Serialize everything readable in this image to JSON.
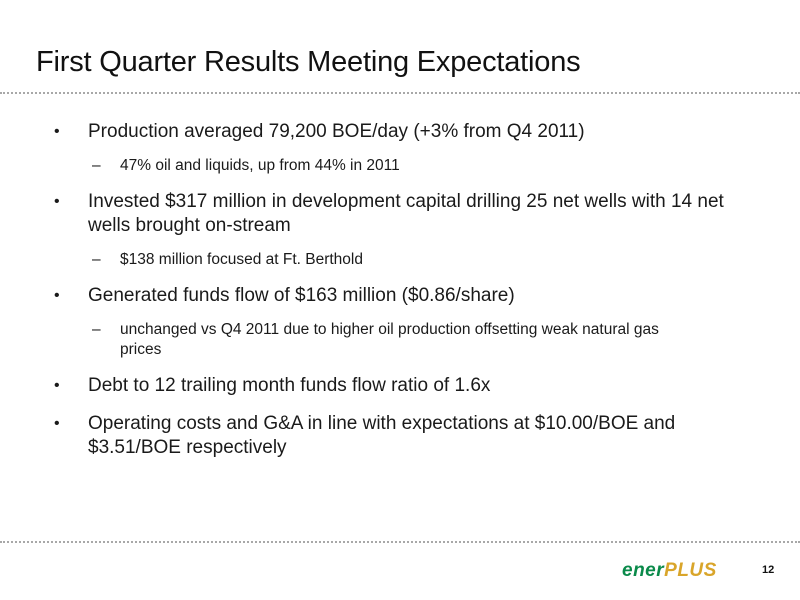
{
  "slide": {
    "title": "First Quarter Results Meeting Expectations",
    "bullets": [
      {
        "text": "Production averaged 79,200 BOE/day (+3% from Q4 2011)",
        "subs": [
          "47% oil and liquids, up from 44% in 2011"
        ]
      },
      {
        "text": "Invested $317 million in development capital drilling 25 net wells with 14 net wells brought on-stream",
        "subs": [
          "$138 million focused at Ft. Berthold"
        ]
      },
      {
        "text": "Generated funds flow of $163 million ($0.86/share)",
        "subs": [
          "unchanged vs Q4 2011 due to higher oil production offsetting weak natural gas prices"
        ]
      },
      {
        "text": "Debt to 12 trailing month funds flow ratio of 1.6x",
        "subs": []
      },
      {
        "text": "Operating costs and G&A in line with expectations at $10.00/BOE and $3.51/BOE respectively",
        "subs": []
      }
    ],
    "bullet_marker": "•",
    "sub_marker": "–"
  },
  "footer": {
    "logo_part1": "ener",
    "logo_part2": "PLUS",
    "page_number": "12"
  },
  "colors": {
    "logo_green": "#0a8a4a",
    "logo_gold": "#d9a52a",
    "divider": "#a8a8a8"
  }
}
